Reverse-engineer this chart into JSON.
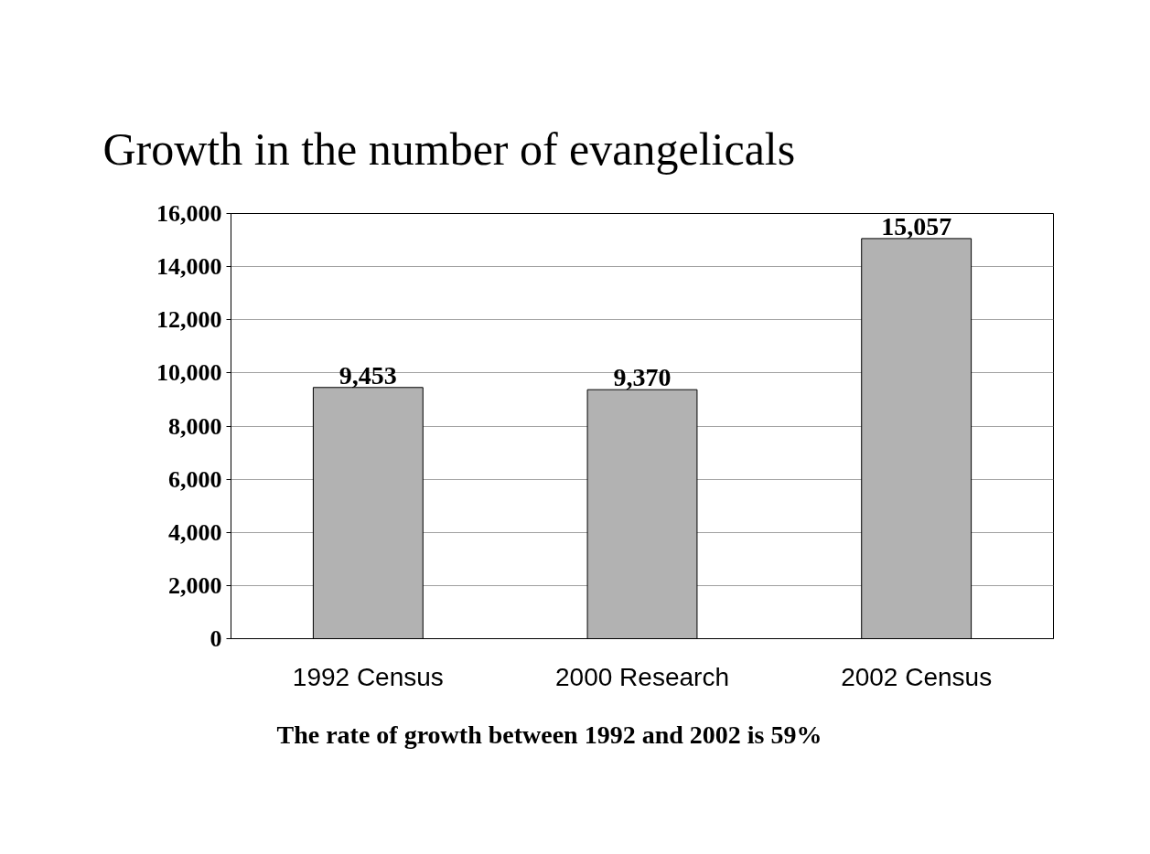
{
  "chart_data": {
    "type": "bar",
    "title": "Growth in the number of evangelicals",
    "categories": [
      "1992 Census",
      "2000 Research",
      "2002 Census"
    ],
    "values": [
      9453,
      9370,
      15057
    ],
    "color": "#b2b2b2",
    "ylim": [
      0,
      16000
    ],
    "yticks": [
      {
        "value": 0,
        "label": "0"
      },
      {
        "value": 2000,
        "label": "2,000"
      },
      {
        "value": 4000,
        "label": "4,000"
      },
      {
        "value": 6000,
        "label": "6,000"
      },
      {
        "value": 8000,
        "label": "8,000"
      },
      {
        "value": 10000,
        "label": "10,000"
      },
      {
        "value": 12000,
        "label": "12,000"
      },
      {
        "value": 14000,
        "label": "14,000"
      },
      {
        "value": 16000,
        "label": "16,000"
      }
    ],
    "grid": "y",
    "value_labels": [
      "9,453",
      "9,370",
      "15,057"
    ],
    "annotations": [
      "The rate of growth between 1992 and 2002 is 59%"
    ]
  }
}
